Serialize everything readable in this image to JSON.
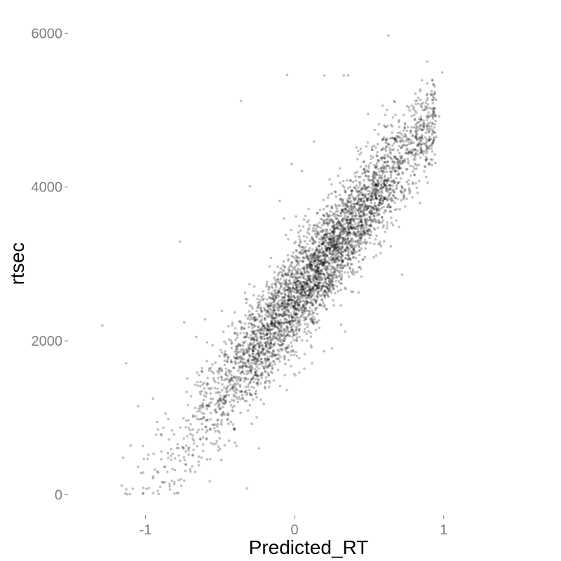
{
  "chart_data": {
    "type": "scatter",
    "title": "",
    "xlabel": "Predicted_RT",
    "ylabel": "rtsec",
    "xlim": [
      -1.52,
      1.74
    ],
    "ylim": [
      -270,
      6250
    ],
    "x_ticks": [
      -1,
      0,
      1
    ],
    "x_tick_labels": [
      "-1",
      "0",
      "1"
    ],
    "y_ticks": [
      0,
      2000,
      4000,
      6000
    ],
    "y_tick_labels": [
      "0",
      "2000",
      "4000",
      "6000"
    ],
    "grid": false,
    "legend": "none",
    "point_color": "#000000",
    "point_alpha": 0.25,
    "trend": {
      "slope": 2480,
      "intercept": 2560,
      "x_range": [
        -1.15,
        0.95
      ],
      "spread_sd": 330
    },
    "points": [
      [
        0.63,
        5970
      ],
      [
        0.89,
        5630
      ],
      [
        0.99,
        5490
      ],
      [
        -0.05,
        5460
      ],
      [
        0.2,
        5450
      ],
      [
        0.33,
        5450
      ],
      [
        0.36,
        5450
      ],
      [
        -0.36,
        5120
      ],
      [
        -0.77,
        3290
      ],
      [
        -1.29,
        2200
      ],
      [
        -1.13,
        1710
      ],
      [
        -0.3,
        4010
      ],
      [
        0.72,
        2860
      ],
      [
        0.34,
        2120
      ],
      [
        -0.24,
        600
      ],
      [
        -0.32,
        80
      ],
      [
        -1.16,
        120
      ],
      [
        -0.95,
        20
      ],
      [
        -0.79,
        20
      ],
      [
        -0.78,
        20
      ],
      [
        0.97,
        4920
      ],
      [
        0.92,
        4940
      ],
      [
        0.8,
        5040
      ],
      [
        0.81,
        4990
      ],
      [
        0.59,
        5060
      ],
      [
        0.84,
        4620
      ],
      [
        0.9,
        4500
      ],
      [
        0.78,
        4610
      ],
      [
        0.77,
        4560
      ],
      [
        0.82,
        3990
      ],
      [
        0.65,
        3840
      ],
      [
        0.62,
        3500
      ],
      [
        0.58,
        3230
      ],
      [
        0.46,
        3280
      ],
      [
        0.38,
        2640
      ],
      [
        0.2,
        3620
      ],
      [
        -0.07,
        3590
      ],
      [
        -0.02,
        4300
      ],
      [
        0.13,
        4590
      ],
      [
        0.05,
        4210
      ],
      [
        -0.1,
        3820
      ],
      [
        -0.33,
        2330
      ],
      [
        -0.6,
        2280
      ],
      [
        -0.74,
        2240
      ],
      [
        -0.66,
        2050
      ],
      [
        -0.55,
        1940
      ],
      [
        -0.95,
        1250
      ],
      [
        -1.05,
        1150
      ],
      [
        -1.1,
        640
      ],
      [
        -1.15,
        480
      ],
      [
        -0.88,
        870
      ],
      [
        -0.85,
        540
      ],
      [
        -0.72,
        760
      ],
      [
        -0.92,
        300
      ],
      [
        -0.87,
        160
      ]
    ]
  }
}
